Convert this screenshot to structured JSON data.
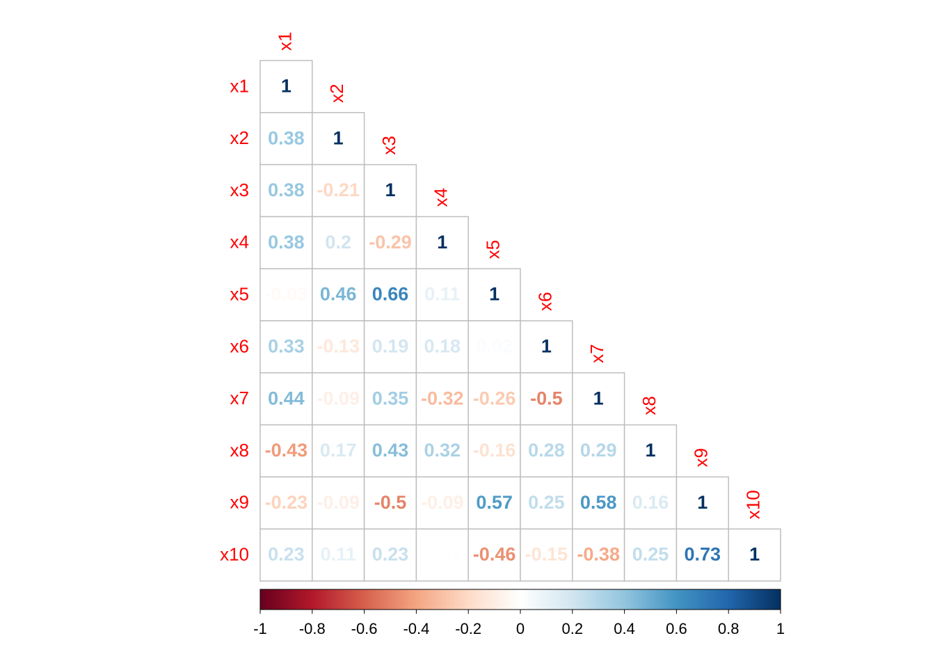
{
  "chart_data": {
    "type": "heatmap",
    "variables": [
      "x1",
      "x2",
      "x3",
      "x4",
      "x5",
      "x6",
      "x7",
      "x8",
      "x9",
      "x10"
    ],
    "matrix_lower": [
      [
        "1"
      ],
      [
        "0.38",
        "1"
      ],
      [
        "0.38",
        "-0.21",
        "1"
      ],
      [
        "0.38",
        "0.2",
        "-0.29",
        "1"
      ],
      [
        "-0.03",
        "0.46",
        "0.66",
        "0.11",
        "1"
      ],
      [
        "0.33",
        "-0.13",
        "0.19",
        "0.18",
        "0.02",
        "1"
      ],
      [
        "0.44",
        "-0.09",
        "0.35",
        "-0.32",
        "-0.26",
        "-0.5",
        "1"
      ],
      [
        "-0.43",
        "0.17",
        "0.43",
        "0.32",
        "-0.16",
        "0.28",
        "0.29",
        "1"
      ],
      [
        "-0.23",
        "-0.09",
        "-0.5",
        "-0.09",
        "0.57",
        "0.25",
        "0.58",
        "0.16",
        "1"
      ],
      [
        "0.23",
        "0.11",
        "0.23",
        "0.01",
        "-0.46",
        "-0.15",
        "-0.38",
        "0.25",
        "0.73",
        "1"
      ]
    ],
    "colorbar": {
      "range": [
        -1,
        1
      ],
      "ticks": [
        "-1",
        "-0.8",
        "-0.6",
        "-0.4",
        "-0.2",
        "0",
        "0.2",
        "0.4",
        "0.6",
        "0.8",
        "1"
      ]
    },
    "label_color": "#FF0000",
    "grid_color": "#BEBEBE",
    "palette": [
      "#67001F",
      "#B2182B",
      "#D6604D",
      "#F4A582",
      "#FDDBC7",
      "#FFFFFF",
      "#D1E5F0",
      "#92C5DE",
      "#4393C3",
      "#2166AC",
      "#053061"
    ]
  }
}
